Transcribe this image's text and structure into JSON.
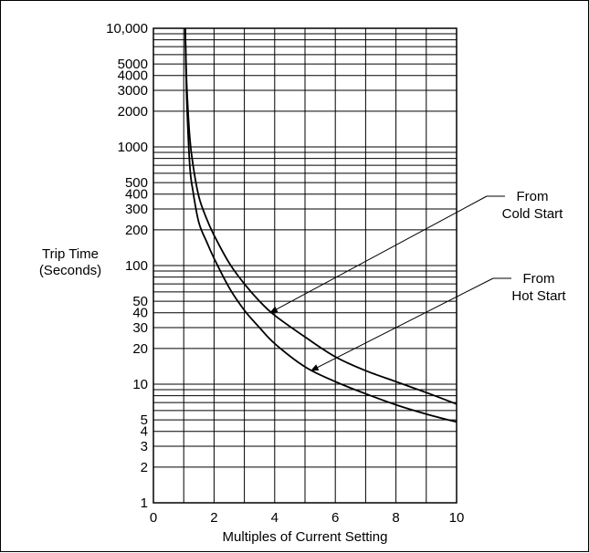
{
  "chart_data": {
    "type": "line",
    "title": "",
    "xlabel": "Multiples of Current Setting",
    "ylabel": [
      "Trip Time",
      "(Seconds)"
    ],
    "xlim": [
      0,
      10
    ],
    "ylim": [
      1,
      10000
    ],
    "yscale": "log",
    "grid": true,
    "x_ticks": [
      0,
      2,
      4,
      6,
      8,
      10
    ],
    "x_tick_labels": [
      "0",
      "2",
      "4",
      "6",
      "8",
      "10"
    ],
    "y_ticks": [
      1,
      2,
      3,
      4,
      5,
      10,
      20,
      30,
      40,
      50,
      100,
      200,
      300,
      400,
      500,
      1000,
      2000,
      3000,
      4000,
      5000,
      10000
    ],
    "y_tick_labels": [
      "1",
      "2",
      "3",
      "4",
      "5",
      "10",
      "20",
      "30",
      "40",
      "50",
      "100",
      "200",
      "300",
      "400",
      "500",
      "1000",
      "2000",
      "3000",
      "4000",
      "5000",
      "10,000"
    ],
    "series": [
      {
        "name": "From Cold Start",
        "x": [
          1.05,
          1.1,
          1.2,
          1.3,
          1.5,
          1.75,
          2.0,
          2.5,
          3.0,
          3.5,
          4.0,
          5.0,
          6.0,
          7.0,
          8.0,
          9.0,
          10.0
        ],
        "y": [
          10000,
          3300,
          1200,
          720,
          380,
          250,
          180,
          105,
          70,
          50,
          38,
          25,
          17,
          13,
          10.5,
          8.5,
          6.8
        ]
      },
      {
        "name": "From Hot Start",
        "x": [
          1.05,
          1.1,
          1.2,
          1.3,
          1.5,
          1.75,
          2.0,
          2.5,
          3.0,
          3.5,
          4.0,
          5.0,
          6.0,
          7.0,
          8.0,
          9.0,
          10.0
        ],
        "y": [
          10000,
          2500,
          700,
          430,
          230,
          160,
          115,
          65,
          42,
          30,
          22,
          14,
          10.5,
          8.3,
          6.7,
          5.6,
          4.8
        ]
      }
    ],
    "annotations": [
      {
        "lines": [
          "From",
          "Cold Start"
        ],
        "target": {
          "x": 3.85,
          "y": 40
        }
      },
      {
        "lines": [
          "From",
          "Hot Start"
        ],
        "target": {
          "x": 5.2,
          "y": 13
        }
      }
    ]
  }
}
